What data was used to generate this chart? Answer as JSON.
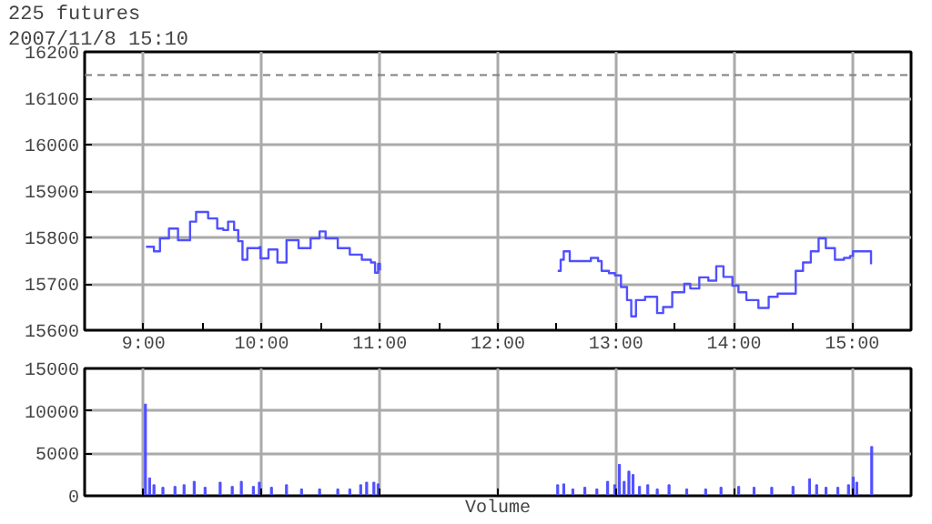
{
  "chart_data": [
    {
      "type": "step",
      "title": "225 futures",
      "subtitle": "2007/11/8 15:10",
      "xlim": [
        8.5,
        15.5
      ],
      "xticks": [
        {
          "value": 9,
          "label": "9:00"
        },
        {
          "value": 9.5,
          "label": null
        },
        {
          "value": 10,
          "label": "10:00"
        },
        {
          "value": 10.5,
          "label": null
        },
        {
          "value": 11,
          "label": "11:00"
        },
        {
          "value": 11.5,
          "label": null
        },
        {
          "value": 12,
          "label": "12:00"
        },
        {
          "value": 12.5,
          "label": null
        },
        {
          "value": 13,
          "label": "13:00"
        },
        {
          "value": 13.5,
          "label": null
        },
        {
          "value": 14,
          "label": "14:00"
        },
        {
          "value": 14.5,
          "label": null
        },
        {
          "value": 15,
          "label": "15:00"
        }
      ],
      "ylim": [
        15600,
        16200
      ],
      "yticks": [
        15600,
        15700,
        15800,
        15900,
        16000,
        16100,
        16200
      ],
      "grid": true,
      "ref_lines": [
        {
          "axis": "y",
          "value": 16150,
          "label": null,
          "color": "#808080",
          "line_style": "dashed"
        }
      ],
      "series": [
        {
          "color": "#5050ff",
          "x": [
            9.02,
            9.087,
            9.138,
            9.214,
            9.291,
            9.393,
            9.444,
            9.521,
            9.546,
            9.623,
            9.674,
            9.715,
            9.766,
            9.801,
            9.837,
            9.878,
            9.98,
            9.99,
            10.057,
            10.133,
            10.21,
            10.312,
            10.414,
            10.49,
            10.541,
            10.644,
            10.746,
            10.848,
            10.925,
            10.96,
            10.986,
            11.001,
            11.5,
            12.507,
            12.532,
            12.558,
            12.609,
            12.686,
            12.788,
            12.849,
            12.879,
            12.941,
            12.992,
            13.043,
            13.094,
            13.13,
            13.17,
            13.247,
            13.349,
            13.4,
            13.477,
            13.579,
            13.63,
            13.706,
            13.783,
            13.85,
            13.911,
            13.987,
            14.038,
            14.105,
            14.207,
            14.294,
            14.37,
            14.472,
            14.523,
            14.585,
            14.651,
            14.717,
            14.778,
            14.855,
            14.932,
            14.983,
            15.008,
            15.136,
            15.161
          ],
          "values": [
            15780,
            15770,
            15798,
            15819,
            15794,
            15834,
            15855,
            15855,
            15841,
            15819,
            15816,
            15834,
            15816,
            15792,
            15752,
            15777,
            15779,
            15755,
            15774,
            15746,
            15794,
            15777,
            15798,
            15813,
            15798,
            15777,
            15763,
            15752,
            15746,
            15724,
            15743,
            15729,
            null,
            15728,
            15752,
            15770,
            15749,
            15749,
            15756,
            15749,
            15728,
            15723,
            15718,
            15693,
            15665,
            15630,
            15665,
            15672,
            15637,
            15650,
            15682,
            15700,
            15690,
            15714,
            15707,
            15738,
            15715,
            15696,
            15682,
            15665,
            15648,
            15672,
            15679,
            15679,
            15728,
            15746,
            15770,
            15798,
            15777,
            15752,
            15756,
            15760,
            15770,
            15770,
            15742
          ]
        }
      ]
    },
    {
      "type": "bar",
      "xlabel": "Volume",
      "tick_labels": "y",
      "xlim": [
        8.5,
        15.5
      ],
      "xticks": [
        {
          "value": 9,
          "label": null
        },
        {
          "value": 10,
          "label": null
        },
        {
          "value": 11,
          "label": null
        },
        {
          "value": 12,
          "label": null
        },
        {
          "value": 13,
          "label": null
        },
        {
          "value": 14,
          "label": null
        },
        {
          "value": 15,
          "label": null
        }
      ],
      "ylim": [
        0,
        15000
      ],
      "yticks": [
        0,
        5000,
        10000,
        15000
      ],
      "grid": true,
      "series": [
        {
          "color": "#5050ff",
          "x": [
            9.015,
            9.05,
            9.087,
            9.163,
            9.265,
            9.342,
            9.428,
            9.52,
            9.648,
            9.75,
            9.827,
            9.929,
            9.98,
            10.082,
            10.21,
            10.337,
            10.49,
            10.644,
            10.746,
            10.838,
            10.889,
            10.95,
            10.986,
            12.507,
            12.558,
            12.635,
            12.737,
            12.839,
            12.93,
            12.99,
            13.03,
            13.07,
            13.11,
            13.145,
            13.2,
            13.27,
            13.35,
            13.45,
            13.6,
            13.76,
            13.89,
            14.04,
            14.17,
            14.32,
            14.5,
            14.64,
            14.7,
            14.78,
            14.88,
            14.97,
            15.01,
            15.04,
            15.167
          ],
          "values": [
            10800,
            2100,
            1300,
            1000,
            1100,
            1300,
            1700,
            1000,
            1600,
            1100,
            1700,
            1100,
            1600,
            1000,
            1300,
            800,
            800,
            800,
            800,
            1300,
            1600,
            1600,
            1400,
            1300,
            1400,
            800,
            1000,
            800,
            1700,
            1300,
            3700,
            1700,
            2900,
            2500,
            1100,
            1300,
            800,
            1300,
            800,
            800,
            1000,
            1100,
            1000,
            1000,
            1100,
            2000,
            1300,
            1000,
            1000,
            1300,
            2200,
            1600,
            5800
          ]
        }
      ]
    }
  ]
}
